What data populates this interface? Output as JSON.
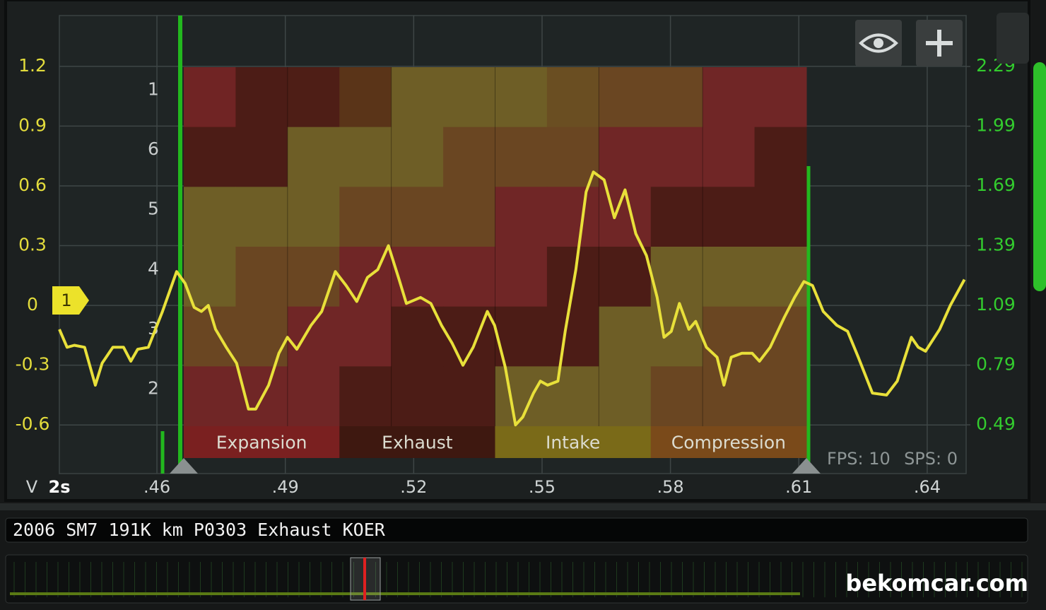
{
  "chart_data": {
    "type": "line",
    "color": "#e8e03a",
    "x": [
      0.4372,
      0.439,
      0.4407,
      0.4431,
      0.4456,
      0.4472,
      0.4497,
      0.4522,
      0.4539,
      0.4555,
      0.458,
      0.4613,
      0.4646,
      0.4666,
      0.4687,
      0.4704,
      0.472,
      0.4737,
      0.4762,
      0.4786,
      0.4814,
      0.4831,
      0.4861,
      0.4885,
      0.4905,
      0.4927,
      0.496,
      0.4985,
      0.5017,
      0.5042,
      0.5067,
      0.5092,
      0.5116,
      0.5141,
      0.5166,
      0.5183,
      0.5216,
      0.524,
      0.5265,
      0.529,
      0.5315,
      0.5339,
      0.5372,
      0.5389,
      0.5414,
      0.5438,
      0.5455,
      0.548,
      0.5496,
      0.5513,
      0.5537,
      0.5554,
      0.5579,
      0.5603,
      0.562,
      0.5645,
      0.5669,
      0.5694,
      0.5719,
      0.5744,
      0.5769,
      0.5785,
      0.5802,
      0.5821,
      0.5843,
      0.5859,
      0.5884,
      0.5909,
      0.5925,
      0.5942,
      0.5967,
      0.5991,
      0.6008,
      0.6033,
      0.6066,
      0.609,
      0.6112,
      0.6132,
      0.6157,
      0.6189,
      0.6214,
      0.6239,
      0.6272,
      0.6305,
      0.633,
      0.6363,
      0.6379,
      0.6396,
      0.6429,
      0.6454,
      0.6487
    ],
    "values": [
      -0.12,
      -0.21,
      -0.2,
      -0.21,
      -0.4,
      -0.29,
      -0.21,
      -0.21,
      -0.28,
      -0.22,
      -0.21,
      -0.03,
      0.17,
      0.11,
      -0.01,
      -0.03,
      0,
      -0.12,
      -0.21,
      -0.29,
      -0.52,
      -0.52,
      -0.4,
      -0.24,
      -0.16,
      -0.22,
      -0.1,
      -0.03,
      0.17,
      0.1,
      0.02,
      0.14,
      0.18,
      0.3,
      0.13,
      0.01,
      0.04,
      0.01,
      -0.1,
      -0.19,
      -0.3,
      -0.21,
      -0.03,
      -0.1,
      -0.31,
      -0.6,
      -0.56,
      -0.44,
      -0.38,
      -0.4,
      -0.38,
      -0.13,
      0.18,
      0.57,
      0.67,
      0.63,
      0.44,
      0.58,
      0.36,
      0.25,
      0.04,
      -0.16,
      -0.13,
      0.01,
      -0.12,
      -0.08,
      -0.21,
      -0.26,
      -0.4,
      -0.26,
      -0.24,
      -0.24,
      -0.28,
      -0.21,
      -0.06,
      0.04,
      0.12,
      0.1,
      -0.03,
      -0.1,
      -0.13,
      -0.26,
      -0.44,
      -0.45,
      -0.38,
      -0.16,
      -0.21,
      -0.23,
      -0.12,
      0,
      0.13
    ],
    "xlim": [
      0.4372,
      0.6491
    ],
    "xticks": [
      {
        "value": 0.46,
        "label": ".46"
      },
      {
        "value": 0.49,
        "label": ".49"
      },
      {
        "value": 0.52,
        "label": ".52"
      },
      {
        "value": 0.55,
        "label": ".55"
      },
      {
        "value": 0.58,
        "label": ".58"
      },
      {
        "value": 0.61,
        "label": ".61"
      },
      {
        "value": 0.64,
        "label": ".64"
      }
    ],
    "ylim": [
      -0.844,
      1.455
    ],
    "yticks": [
      1.2,
      0.9,
      0.6,
      0.3,
      0,
      -0.3,
      -0.6
    ],
    "y_tick_color": "#e3dc3c",
    "y2lim": [
      0.245,
      2.546
    ],
    "y2ticks": [
      2.29,
      1.99,
      1.69,
      1.39,
      1.09,
      0.79,
      0.49
    ],
    "y2_tick_color": "#33cc2e",
    "grid": true,
    "x_unit_label": "V",
    "timebase": "2s",
    "marker_label": "1",
    "heatmap": {
      "row_labels": [
        1,
        6,
        5,
        4,
        3,
        2
      ],
      "cell_colors": [
        [
          "#702424",
          "#4c1c16",
          "#4e1e16",
          "#5a3418",
          "#6e5e26",
          "#6e5e26",
          "#6e5e26",
          "#6a4e22",
          "#6a4622",
          "#6a4622",
          "#702626",
          "#702626"
        ],
        [
          "#4c1c16",
          "#4c1c16",
          "#6e5e26",
          "#6e5e26",
          "#6e5e26",
          "#6a4622",
          "#6a4622",
          "#6a4622",
          "#702626",
          "#702626",
          "#702626",
          "#4c1c16"
        ],
        [
          "#6e5e26",
          "#6e5e26",
          "#6e5e26",
          "#6a4622",
          "#6a4622",
          "#6a4622",
          "#702626",
          "#702626",
          "#702626",
          "#4c1c16",
          "#4c1c16",
          "#4c1c16"
        ],
        [
          "#6e5e26",
          "#6a4622",
          "#6a4622",
          "#702626",
          "#702626",
          "#702626",
          "#702626",
          "#4c1c16",
          "#4c1c16",
          "#6e5e26",
          "#6e5e26",
          "#6e5e26"
        ],
        [
          "#6a4622",
          "#6a4622",
          "#702626",
          "#702626",
          "#4c1c16",
          "#4c1c16",
          "#4c1c16",
          "#4c1c16",
          "#6e5e26",
          "#6e5e26",
          "#6a4622",
          "#6a4622"
        ],
        [
          "#702626",
          "#702626",
          "#702626",
          "#4c1c16",
          "#4c1c16",
          "#4c1c16",
          "#6e5e26",
          "#6e5e26",
          "#6e5e26",
          "#6a4622",
          "#6a4622",
          "#6a4622"
        ]
      ],
      "phases": [
        {
          "label": "Expansion",
          "color": "#7a2020"
        },
        {
          "label": "Exhaust",
          "color": "#3e1810"
        },
        {
          "label": "Intake",
          "color": "#7a6a18"
        },
        {
          "label": "Compression",
          "color": "#7a4a1a"
        }
      ]
    },
    "status": {
      "fps": "FPS: 10",
      "sps": "SPS: 0"
    }
  },
  "recording_title": "2006 SM7 191K km P0303 Exhaust KOER",
  "watermark": "bekomcar.com"
}
